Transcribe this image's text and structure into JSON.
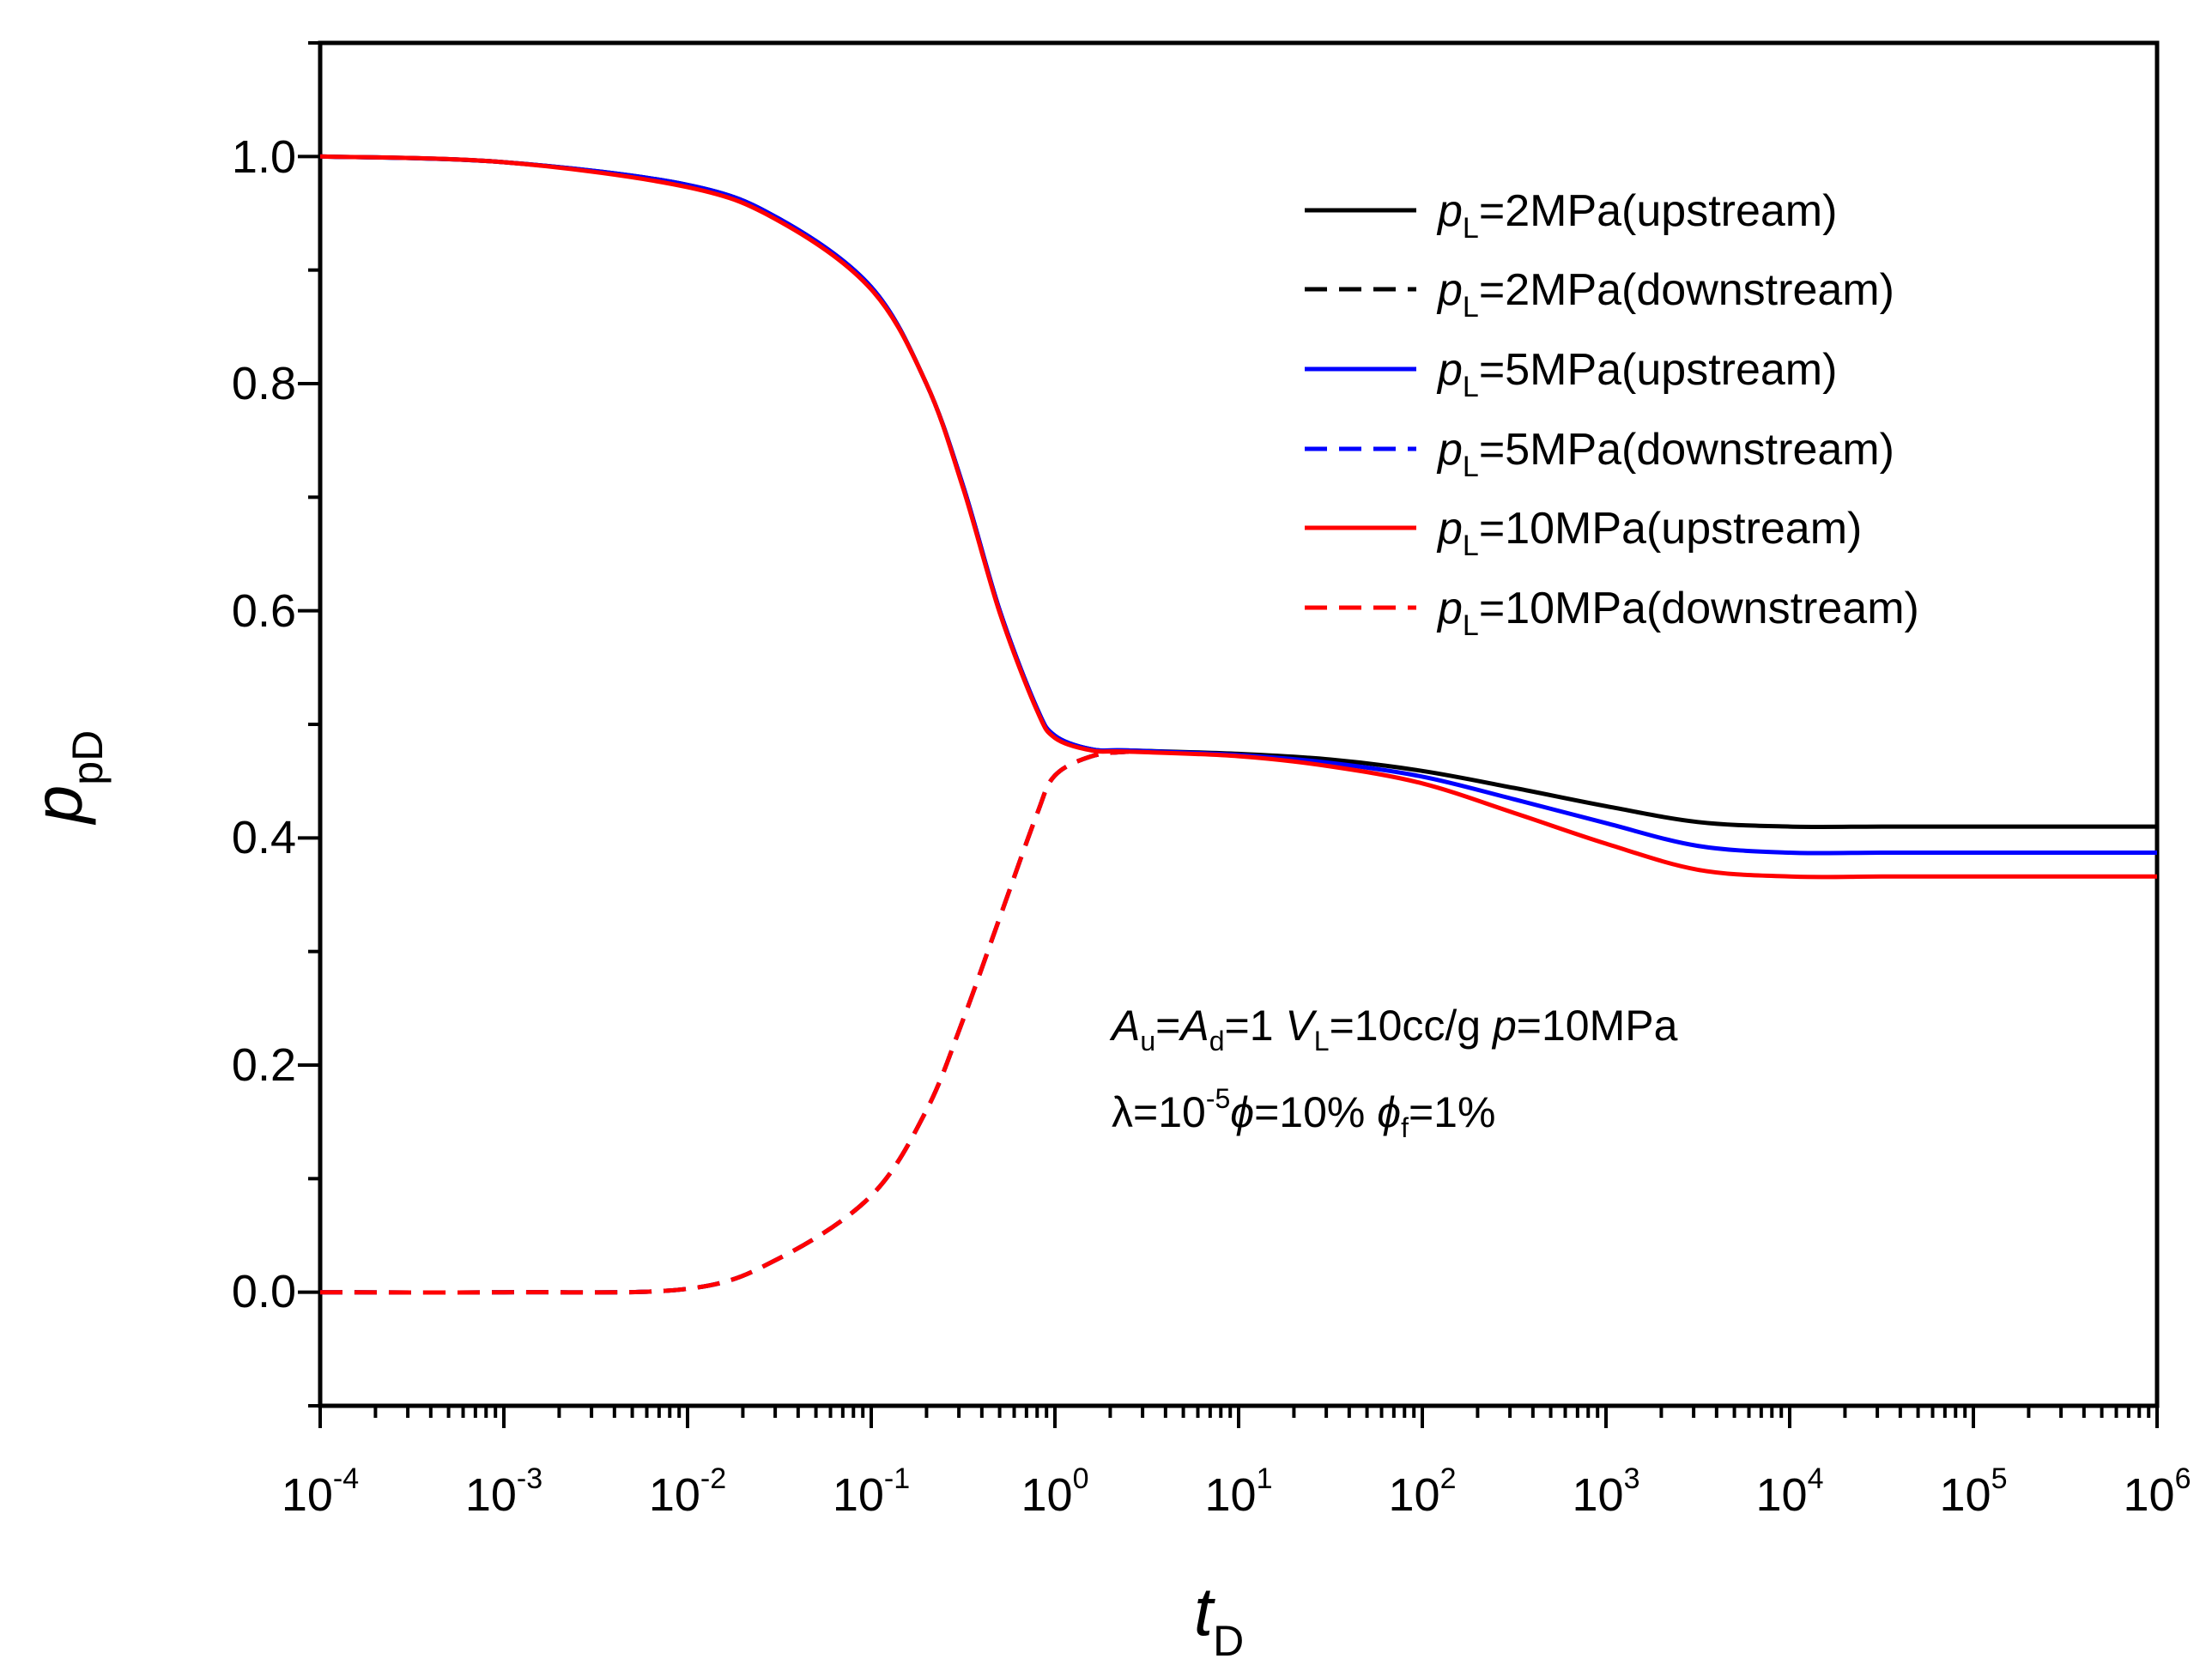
{
  "chart_data": {
    "type": "line",
    "title": "",
    "xscale": "log",
    "xlim_exp": [
      -4,
      6
    ],
    "ylim": [
      -0.1,
      1.1
    ],
    "x_ticks": [
      {
        "base": "10",
        "exp": "-4"
      },
      {
        "base": "10",
        "exp": "-3"
      },
      {
        "base": "10",
        "exp": "-2"
      },
      {
        "base": "10",
        "exp": "-1"
      },
      {
        "base": "10",
        "exp": "0"
      },
      {
        "base": "10",
        "exp": "1"
      },
      {
        "base": "10",
        "exp": "2"
      },
      {
        "base": "10",
        "exp": "3"
      },
      {
        "base": "10",
        "exp": "4"
      },
      {
        "base": "10",
        "exp": "5"
      },
      {
        "base": "10",
        "exp": "6"
      }
    ],
    "y_ticks": [
      "0.0",
      "0.2",
      "0.4",
      "0.6",
      "0.8",
      "1.0"
    ],
    "y_tick_values": [
      0,
      0.2,
      0.4,
      0.6,
      0.8,
      1.0
    ],
    "xlabel": {
      "main": "t",
      "sub": "D"
    },
    "ylabel": {
      "main": "p",
      "sub": "pD"
    },
    "x": [
      -4,
      -3,
      -2,
      -1.5,
      -1,
      -0.7,
      -0.5,
      -0.3,
      -0.1,
      0,
      0.2,
      0.4,
      1,
      1.5,
      2,
      2.5,
      3,
      3.5,
      4,
      4.5,
      5,
      6
    ],
    "series": [
      {
        "legend_main": "p",
        "legend_sub": "L",
        "legend_rest": "=2MPa(upstream)",
        "color": "#000000",
        "dashed": false,
        "values": [
          1.0,
          0.995,
          0.975,
          0.945,
          0.885,
          0.8,
          0.71,
          0.6,
          0.515,
          0.49,
          0.478,
          0.477,
          0.474,
          0.469,
          0.459,
          0.444,
          0.428,
          0.414,
          0.41,
          0.41,
          0.41,
          0.41
        ]
      },
      {
        "legend_main": "p",
        "legend_sub": "L",
        "legend_rest": "=2MPa(downstream)",
        "color": "#000000",
        "dashed": true,
        "values": [
          0.0,
          0.0,
          0.003,
          0.03,
          0.085,
          0.16,
          0.24,
          0.33,
          0.42,
          0.455,
          0.472,
          0.476,
          null,
          null,
          null,
          null,
          null,
          null,
          null,
          null,
          null,
          null
        ]
      },
      {
        "legend_main": "p",
        "legend_sub": "L",
        "legend_rest": "=5MPa(upstream)",
        "color": "#0000ff",
        "dashed": false,
        "values": [
          1.0,
          0.995,
          0.975,
          0.945,
          0.885,
          0.8,
          0.71,
          0.6,
          0.515,
          0.49,
          0.478,
          0.477,
          0.473,
          0.466,
          0.454,
          0.434,
          0.413,
          0.393,
          0.387,
          0.387,
          0.387,
          0.387
        ]
      },
      {
        "legend_main": "p",
        "legend_sub": "L",
        "legend_rest": "=5MPa(downstream)",
        "color": "#0000ff",
        "dashed": true,
        "values": [
          0.0,
          0.0,
          0.003,
          0.03,
          0.085,
          0.16,
          0.24,
          0.33,
          0.42,
          0.455,
          0.472,
          0.476,
          null,
          null,
          null,
          null,
          null,
          null,
          null,
          null,
          null,
          null
        ]
      },
      {
        "legend_main": "p",
        "legend_sub": "L",
        "legend_rest": "=10MPa(upstream)",
        "color": "#ff0000",
        "dashed": false,
        "values": [
          1.0,
          0.995,
          0.973,
          0.943,
          0.883,
          0.8,
          0.708,
          0.598,
          0.513,
          0.488,
          0.477,
          0.476,
          0.472,
          0.463,
          0.448,
          0.422,
          0.395,
          0.372,
          0.366,
          0.366,
          0.366,
          0.366
        ]
      },
      {
        "legend_main": "p",
        "legend_sub": "L",
        "legend_rest": "=10MPa(downstream)",
        "color": "#ff0000",
        "dashed": true,
        "values": [
          0.0,
          0.0,
          0.003,
          0.03,
          0.085,
          0.16,
          0.24,
          0.33,
          0.42,
          0.455,
          0.472,
          0.476,
          null,
          null,
          null,
          null,
          null,
          null,
          null,
          null,
          null,
          null
        ]
      }
    ],
    "annotation": {
      "line1": {
        "a": "A",
        "a_sub": "u",
        "eq1": "=",
        "b": "A",
        "b_sub": "d",
        "rest1": "=1 ",
        "v": "V",
        "v_sub": "L",
        "rest2": "=10cc/g  ",
        "p": "p",
        "rest3": "=10MPa"
      },
      "line2": {
        "lam": "λ=10",
        "lam_sup": "-5",
        "phi": "ϕ",
        "rest1": "=10% ",
        "phif": "ϕ",
        "phif_sub": "f",
        "rest2": "=1%"
      }
    }
  }
}
